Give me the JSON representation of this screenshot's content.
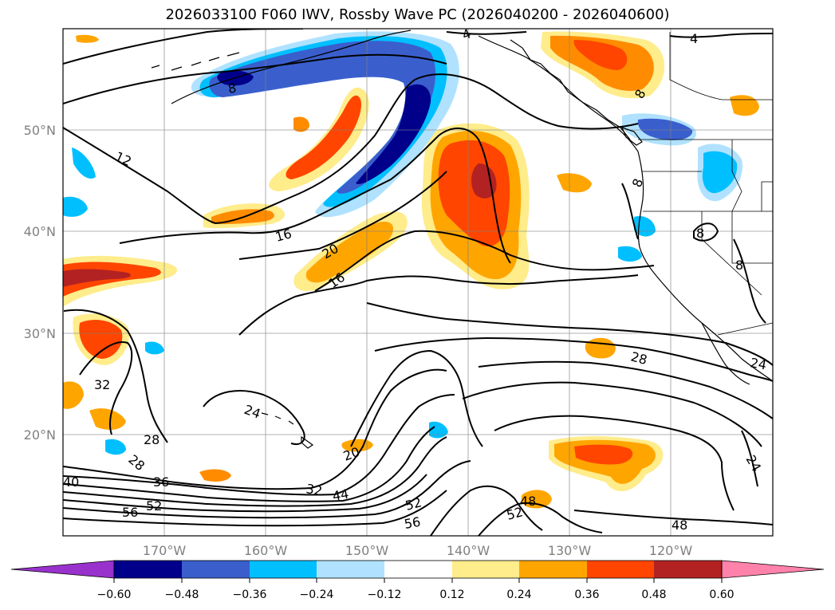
{
  "title": "2026033100 F060 IWV, Rossby Wave PC (2026040200 - 2026040600)",
  "lat_labels": [
    "50°N",
    "40°N",
    "30°N",
    "20°N"
  ],
  "lon_labels": [
    "170°W",
    "160°W",
    "150°W",
    "140°W",
    "130°W",
    "120°W"
  ],
  "contour_labels": [
    "4",
    "12",
    "16",
    "20",
    "16",
    "8",
    "8",
    "8",
    "4",
    "8",
    "32",
    "28",
    "28",
    "24",
    "20",
    "32",
    "36",
    "40",
    "52",
    "56",
    "44",
    "52",
    "56",
    "48",
    "52",
    "48",
    "28",
    "24",
    "24",
    "8"
  ],
  "colorbar": {
    "ticks": [
      "−0.60",
      "−0.48",
      "−0.36",
      "−0.24",
      "−0.12",
      "0.12",
      "0.24",
      "0.36",
      "0.48",
      "0.60"
    ],
    "colors": [
      "#9932cc",
      "#00008b",
      "#3a5fcd",
      "#00bfff",
      "#b0e2ff",
      "#ffffff",
      "#ffec8b",
      "#ffa500",
      "#ff4500",
      "#b22222",
      "#ff82ab"
    ]
  },
  "colors": {
    "gridline": "#808080",
    "contour": "#000000"
  }
}
